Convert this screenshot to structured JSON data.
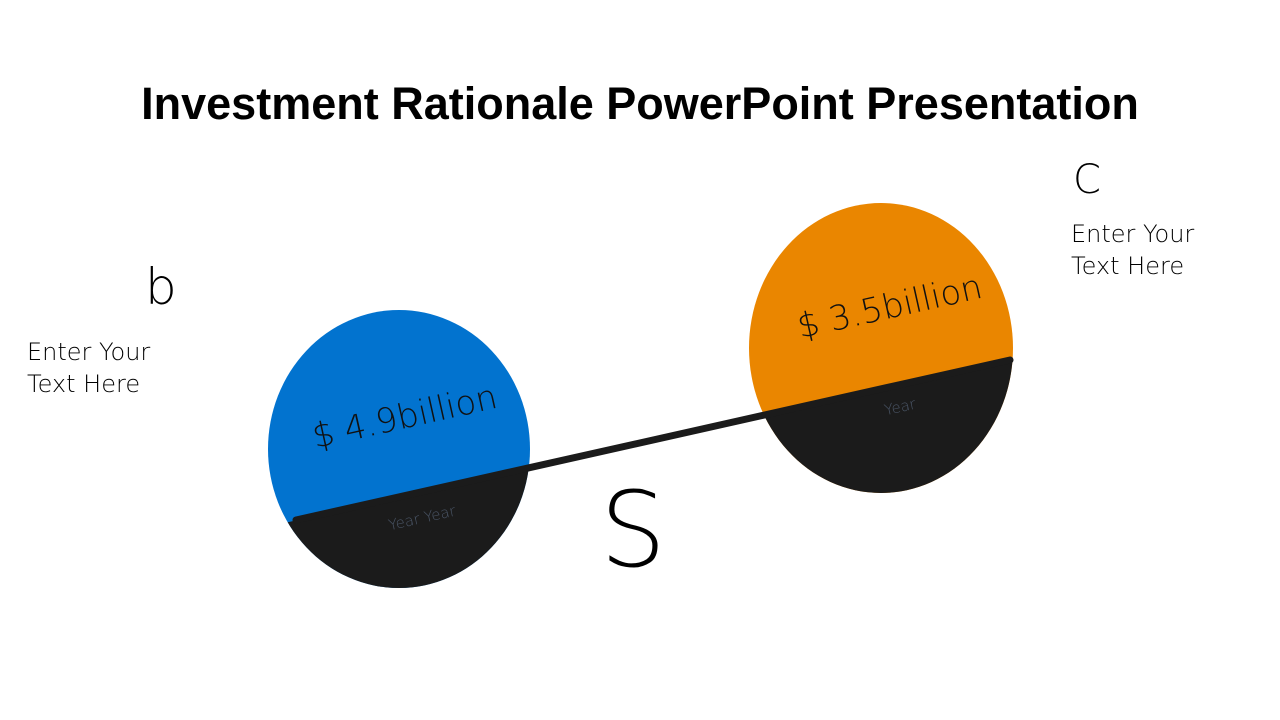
{
  "title": "Investment Rationale PowerPoint Presentation",
  "left": {
    "letter": "b",
    "text_line1": "Enter Your",
    "text_line2": "Text Here",
    "value": "$ 4.9billion",
    "sub": "Year Year",
    "color": "#0273CF"
  },
  "right": {
    "letter": "C",
    "text_line1": "Enter Your",
    "text_line2": "Text Here",
    "value": "$ 3.5billion",
    "sub": "Year",
    "color": "#EA8600"
  },
  "center_letter": "S",
  "dark_color": "#1b1b1b"
}
